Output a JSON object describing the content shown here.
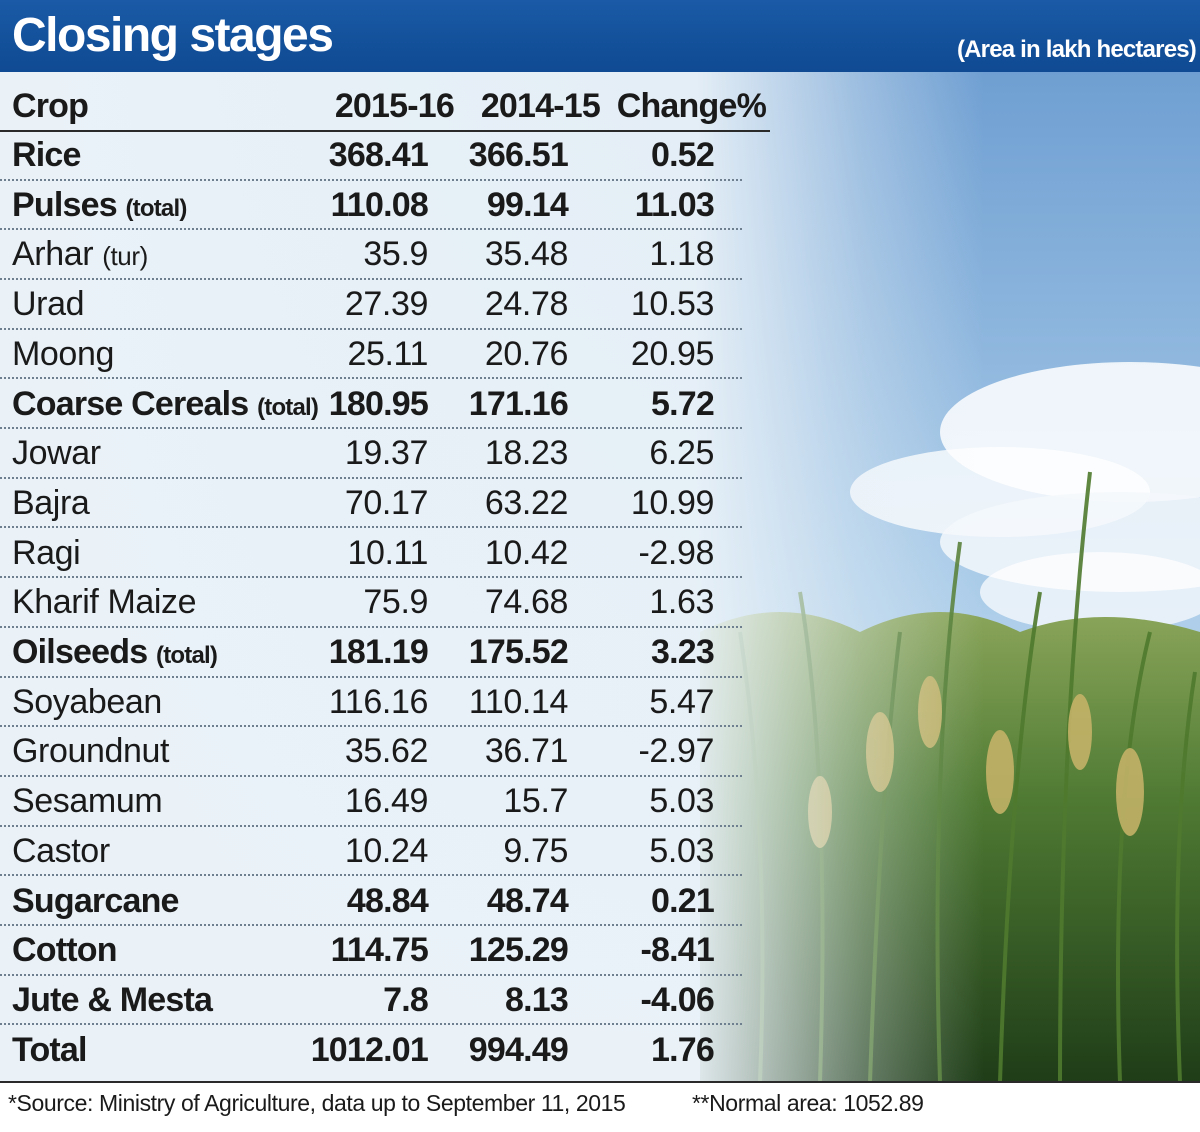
{
  "title": "Closing stages",
  "unit_note": "(Area in lakh hectares)",
  "chart_data": {
    "type": "table",
    "columns": [
      "Crop",
      "2015-16",
      "2014-15",
      "Change%"
    ],
    "rows": [
      {
        "crop": "Rice",
        "qualifier": "",
        "y2015_16": "368.41",
        "y2014_15": "366.51",
        "change": "0.52",
        "bold": true
      },
      {
        "crop": "Pulses",
        "qualifier": "(total)",
        "y2015_16": "110.08",
        "y2014_15": "99.14",
        "change": "11.03",
        "bold": true
      },
      {
        "crop": "Arhar",
        "qualifier": "(tur)",
        "y2015_16": "35.9",
        "y2014_15": "35.48",
        "change": "1.18",
        "bold": false
      },
      {
        "crop": "Urad",
        "qualifier": "",
        "y2015_16": "27.39",
        "y2014_15": "24.78",
        "change": "10.53",
        "bold": false
      },
      {
        "crop": "Moong",
        "qualifier": "",
        "y2015_16": "25.11",
        "y2014_15": "20.76",
        "change": "20.95",
        "bold": false
      },
      {
        "crop": "Coarse Cereals",
        "qualifier": "(total)",
        "y2015_16": "180.95",
        "y2014_15": "171.16",
        "change": "5.72",
        "bold": true
      },
      {
        "crop": "Jowar",
        "qualifier": "",
        "y2015_16": "19.37",
        "y2014_15": "18.23",
        "change": "6.25",
        "bold": false
      },
      {
        "crop": "Bajra",
        "qualifier": "",
        "y2015_16": "70.17",
        "y2014_15": "63.22",
        "change": "10.99",
        "bold": false
      },
      {
        "crop": "Ragi",
        "qualifier": "",
        "y2015_16": "10.11",
        "y2014_15": "10.42",
        "change": "-2.98",
        "bold": false
      },
      {
        "crop": "Kharif Maize",
        "qualifier": "",
        "y2015_16": "75.9",
        "y2014_15": "74.68",
        "change": "1.63",
        "bold": false
      },
      {
        "crop": "Oilseeds",
        "qualifier": "(total)",
        "y2015_16": "181.19",
        "y2014_15": "175.52",
        "change": "3.23",
        "bold": true
      },
      {
        "crop": "Soyabean",
        "qualifier": "",
        "y2015_16": "116.16",
        "y2014_15": "110.14",
        "change": "5.47",
        "bold": false
      },
      {
        "crop": "Groundnut",
        "qualifier": "",
        "y2015_16": "35.62",
        "y2014_15": "36.71",
        "change": "-2.97",
        "bold": false
      },
      {
        "crop": "Sesamum",
        "qualifier": "",
        "y2015_16": "16.49",
        "y2014_15": "15.7",
        "change": "5.03",
        "bold": false
      },
      {
        "crop": "Castor",
        "qualifier": "",
        "y2015_16": "10.24",
        "y2014_15": "9.75",
        "change": "5.03",
        "bold": false
      },
      {
        "crop": "Sugarcane",
        "qualifier": "",
        "y2015_16": "48.84",
        "y2014_15": "48.74",
        "change": "0.21",
        "bold": true
      },
      {
        "crop": "Cotton",
        "qualifier": "",
        "y2015_16": "114.75",
        "y2014_15": "125.29",
        "change": "-8.41",
        "bold": true
      },
      {
        "crop": "Jute & Mesta",
        "qualifier": "",
        "y2015_16": "7.8",
        "y2014_15": "8.13",
        "change": "-4.06",
        "bold": true
      },
      {
        "crop": "Total",
        "qualifier": "",
        "y2015_16": "1012.01",
        "y2014_15": "994.49",
        "change": "1.76",
        "bold": true
      }
    ]
  },
  "footer": {
    "source": "*Source: Ministry of Agriculture, data up to September 11, 2015",
    "normal_area": "**Normal area: 1052.89"
  },
  "colors": {
    "header_bg": "#1258a3",
    "sky": "#9cc4e8",
    "crop_green": "#3f6a2a",
    "text": "#1a1a1a"
  }
}
